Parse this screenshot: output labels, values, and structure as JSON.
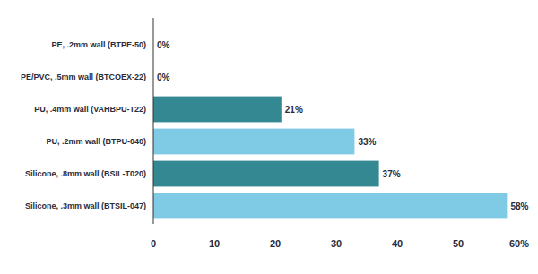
{
  "chart_data": {
    "type": "bar",
    "orientation": "horizontal",
    "categories": [
      "PE, .2mm wall (BTPE-50)",
      "PE/PVC, .5mm wall (BTCOEX-22)",
      "PU, .4mm wall (VAHBPU-T22)",
      "PU, .2mm wall (BTPU-040)",
      "Silicone, .8mm wall (BSIL-T020)",
      "Silicone, .3mm wall (BTSIL-047)"
    ],
    "values": [
      0,
      0,
      21,
      33,
      37,
      58
    ],
    "value_labels": [
      "0%",
      "0%",
      "21%",
      "33%",
      "37%",
      "58%"
    ],
    "colors": [
      "#7fcbe5",
      "#7fcbe5",
      "#348891",
      "#7fcbe5",
      "#348891",
      "#7fcbe5"
    ],
    "xlim": [
      0,
      60
    ],
    "xticks": [
      0,
      10,
      20,
      30,
      40,
      50,
      {
        "value": 60,
        "label": "60%"
      }
    ],
    "data_labels": true,
    "grid": false
  }
}
